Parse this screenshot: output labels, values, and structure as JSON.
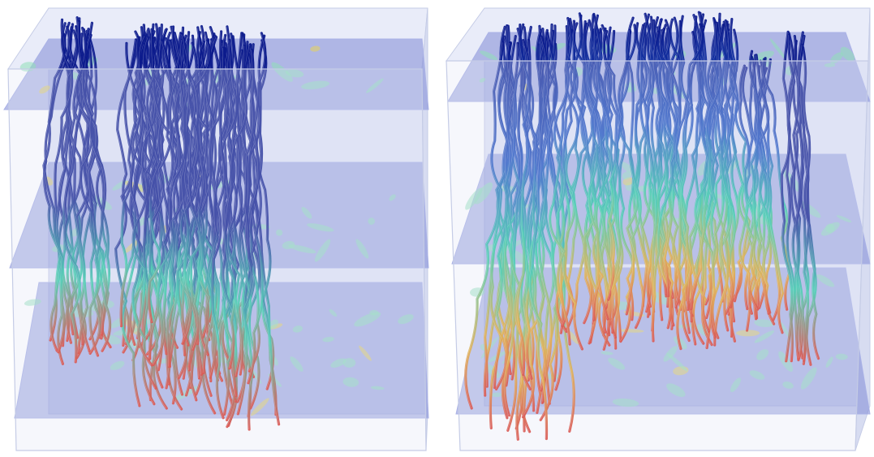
{
  "figure": {
    "panels": [
      {
        "id": "left",
        "slices": 3,
        "streamline_colormap": "jet"
      },
      {
        "id": "right",
        "slices": 3,
        "streamline_colormap": "jet"
      }
    ],
    "colors": {
      "background": "#ffffff",
      "box_fill": "#dfe4f6",
      "box_edge": "#c5cce6",
      "slice_fill": "#7f8ad6",
      "streamline_low": "#0b1a8c",
      "streamline_mid": "#22c7a0",
      "streamline_high": "#d8281a"
    }
  }
}
